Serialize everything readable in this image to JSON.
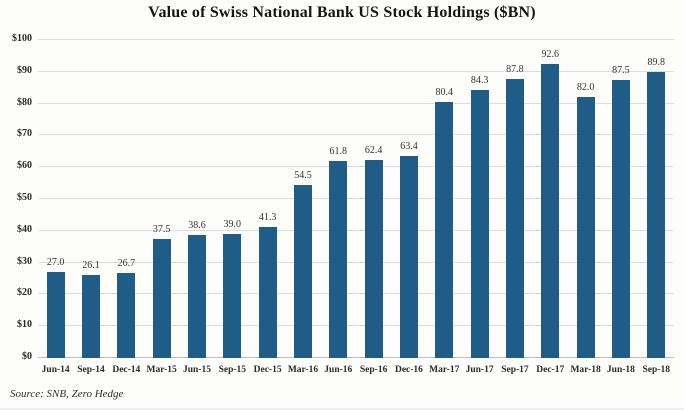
{
  "chart_data": {
    "type": "bar",
    "title": "Value of Swiss National Bank US Stock Holdings ($BN)",
    "categories": [
      "Jun-14",
      "Sep-14",
      "Dec-14",
      "Mar-15",
      "Jun-15",
      "Sep-15",
      "Dec-15",
      "Mar-16",
      "Jun-16",
      "Sep-16",
      "Dec-16",
      "Mar-17",
      "Jun-17",
      "Sep-17",
      "Dec-17",
      "Mar-18",
      "Jun-18",
      "Sep-18"
    ],
    "values": [
      27.0,
      26.1,
      26.7,
      37.5,
      38.6,
      39.0,
      41.3,
      54.5,
      61.8,
      62.4,
      63.4,
      80.4,
      84.3,
      87.8,
      92.6,
      82.0,
      87.5,
      89.8
    ],
    "value_labels": [
      "27.0",
      "26.1",
      "26.7",
      "37.5",
      "38.6",
      "39.0",
      "41.3",
      "54.5",
      "61.8",
      "62.4",
      "63.4",
      "80.4",
      "84.3",
      "87.8",
      "92.6",
      "82.0",
      "87.5",
      "89.8"
    ],
    "xlabel": "",
    "ylabel": "",
    "ylim": [
      0,
      100
    ],
    "yticks": [
      {
        "value": 0,
        "label": "$0"
      },
      {
        "value": 10,
        "label": "$10"
      },
      {
        "value": 20,
        "label": "$20"
      },
      {
        "value": 30,
        "label": "$30"
      },
      {
        "value": 40,
        "label": "$40"
      },
      {
        "value": 50,
        "label": "$50"
      },
      {
        "value": 60,
        "label": "$60"
      },
      {
        "value": 70,
        "label": "$70"
      },
      {
        "value": 80,
        "label": "$80"
      },
      {
        "value": 90,
        "label": "$90"
      },
      {
        "value": 100,
        "label": "$100"
      }
    ],
    "grid": true,
    "legend_position": "none",
    "bar_color": "#1F5C87"
  },
  "source_note": "Source: SNB, Zero Hedge",
  "colors": {
    "bar": "#1F5C87",
    "gridline": "#dcdcdc",
    "baseline": "#bdbdbd",
    "title_text": "#151515",
    "label_text": "#333333",
    "background": "#fdfdfc"
  }
}
